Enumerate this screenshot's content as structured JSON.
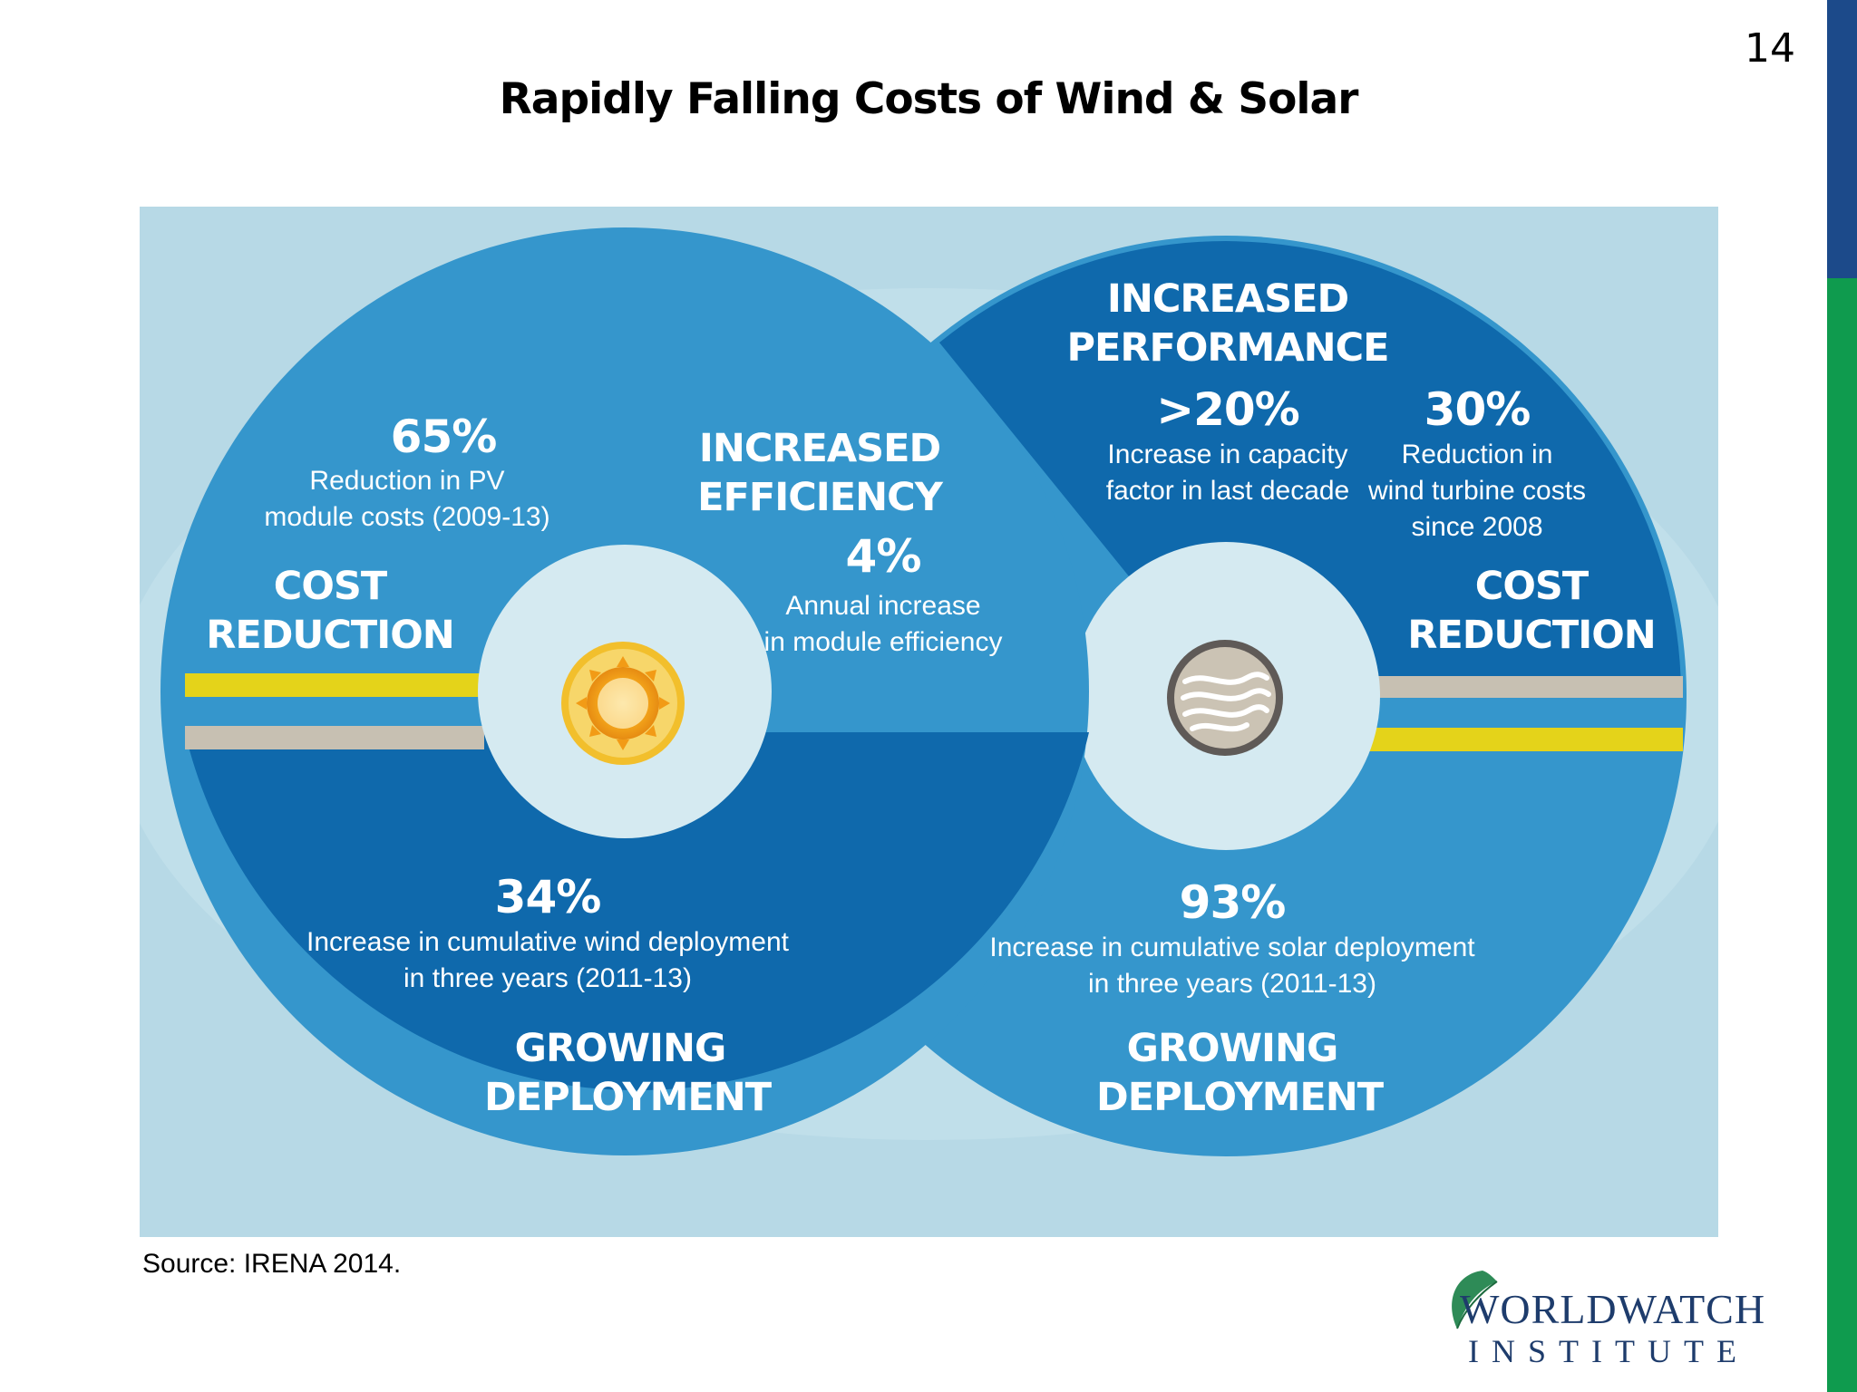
{
  "page_number": "14",
  "title": "Rapidly Falling Costs of Wind & Solar",
  "source": "Source: IRENA 2014.",
  "logo": {
    "line1": "WORLDWATCH",
    "line2": "INSTITUTE"
  },
  "colors": {
    "background": "#b7d9e6",
    "ring_light": "#3596cc",
    "ring_dark": "#0f69ac",
    "hub": "#d5eaf1",
    "yellow_band": "#e4d31a",
    "gray_band": "#c7c0b2",
    "bar_blue": "#1c4a8a",
    "bar_green": "#0f9b4e"
  },
  "icons": {
    "left_hub": "sun-icon",
    "right_hub": "wind-icon"
  },
  "left_ring": {
    "cost_stat": "65%",
    "cost_desc": [
      "Reduction in PV",
      "module costs  (2009-13)"
    ],
    "cost_heading": [
      "COST",
      "REDUCTION"
    ],
    "deploy_stat": "34%",
    "deploy_desc": [
      "Increase in cumulative wind deployment",
      "in three years (2011-13)"
    ],
    "deploy_heading": [
      "GROWING",
      "DEPLOYMENT"
    ]
  },
  "center": {
    "efficiency_heading": [
      "INCREASED",
      "EFFICIENCY"
    ],
    "efficiency_stat": "4%",
    "efficiency_desc": [
      "Annual increase",
      "in module efficiency"
    ]
  },
  "right_ring": {
    "performance_heading": [
      "INCREASED",
      "PERFORMANCE"
    ],
    "performance_stat": ">20%",
    "performance_desc": [
      "Increase in capacity",
      "factor in last decade"
    ],
    "cost_stat": "30%",
    "cost_desc": [
      "Reduction in",
      "wind turbine costs",
      "since 2008"
    ],
    "cost_heading": [
      "COST",
      "REDUCTION"
    ],
    "deploy_stat": "93%",
    "deploy_desc": [
      "Increase in cumulative solar deployment",
      "in three years (2011-13)"
    ],
    "deploy_heading": [
      "GROWING",
      "DEPLOYMENT"
    ]
  }
}
